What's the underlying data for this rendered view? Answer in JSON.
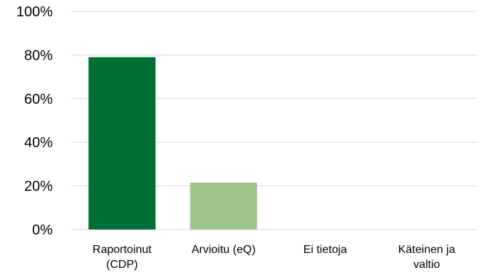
{
  "chart_data": {
    "type": "bar",
    "categories": [
      [
        "Raportoinut",
        "(CDP)"
      ],
      [
        "Arvioitu (eQ)"
      ],
      [
        "Ei tietoja"
      ],
      [
        "Käteinen ja",
        "valtio"
      ]
    ],
    "values": [
      79,
      21.5,
      0,
      0
    ],
    "bar_colors": [
      "#006f35",
      "#9dc386",
      "#006f35",
      "#006f35"
    ],
    "ylim": [
      0,
      100
    ],
    "yticks": [
      0,
      20,
      40,
      60,
      80,
      100
    ],
    "ytick_labels": [
      "0%",
      "20%",
      "40%",
      "60%",
      "80%",
      "100%"
    ],
    "grid": true,
    "title": "",
    "xlabel": "",
    "ylabel": ""
  }
}
